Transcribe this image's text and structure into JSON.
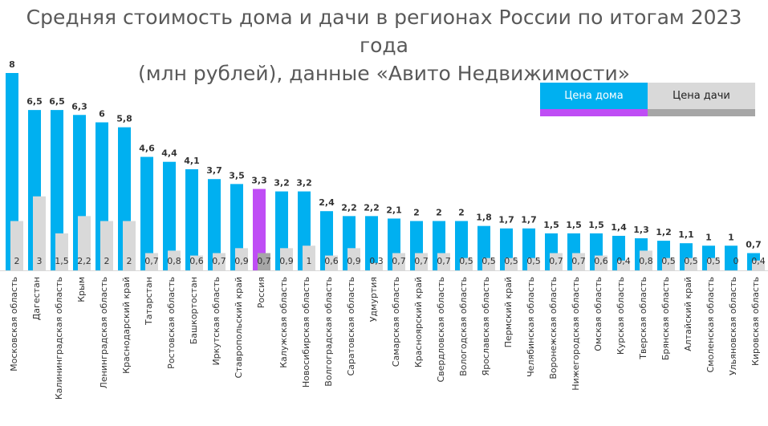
{
  "chart_data": {
    "type": "bar",
    "title": "Средняя стоимость дома и дачи в регионах России по итогам 2023 года (млн рублей), данные «Авито Недвижимости»",
    "title_lines": [
      "Средняя стоимость дома и дачи в регионах России по итогам 2023 года",
      "(млн рублей), данные «Авито Недвижимости»"
    ],
    "legend_placement": "top-right",
    "grid": false,
    "ylim": [
      0,
      8
    ],
    "categories": [
      "Московская область",
      "Дагестан",
      "Калининградская область",
      "Крым",
      "Ленинградская область",
      "Краснодарский край",
      "Татарстан",
      "Ростовская область",
      "Башкортостан",
      "Иркутская область",
      "Ставропольский край",
      "Россия",
      "Калужская область",
      "Новосибирская область",
      "Волгоградская область",
      "Саратовская область",
      "Удмуртия",
      "Самарская область",
      "Красноярский край",
      "Свердловская область",
      "Вологодская область",
      "Ярославская область",
      "Пермский край",
      "Челябинская область",
      "Воронежская область",
      "Нижегородская область",
      "Омская область",
      "Курская область",
      "Тверская область",
      "Брянская область",
      "Алтайский край",
      "Смоленская область",
      "Ульяновская область",
      "Кировская область"
    ],
    "highlight_category": "Россия",
    "series": [
      {
        "name": "Цена дома",
        "color": "#00b0f0",
        "highlight_color": "#bf4df5",
        "values": [
          8,
          6.5,
          6.5,
          6.3,
          6,
          5.8,
          4.6,
          4.4,
          4.1,
          3.7,
          3.5,
          3.3,
          3.2,
          3.2,
          2.4,
          2.2,
          2.2,
          2.1,
          2,
          2,
          2,
          1.8,
          1.7,
          1.7,
          1.5,
          1.5,
          1.5,
          1.4,
          1.3,
          1.2,
          1.1,
          1,
          1,
          0.7
        ]
      },
      {
        "name": "Цена дачи",
        "color": "#d9d9d9",
        "highlight_color": "#a6a6a6",
        "values": [
          2,
          3,
          1.5,
          2.2,
          2,
          2,
          0.7,
          0.8,
          0.6,
          0.7,
          0.9,
          0.7,
          0.9,
          1,
          0.6,
          0.9,
          0.3,
          0.7,
          0.7,
          0.7,
          0.5,
          0.5,
          0.5,
          0.5,
          0.7,
          0.7,
          0.6,
          0.4,
          0.8,
          0.5,
          0.5,
          0.5,
          0,
          0.4
        ]
      }
    ]
  }
}
